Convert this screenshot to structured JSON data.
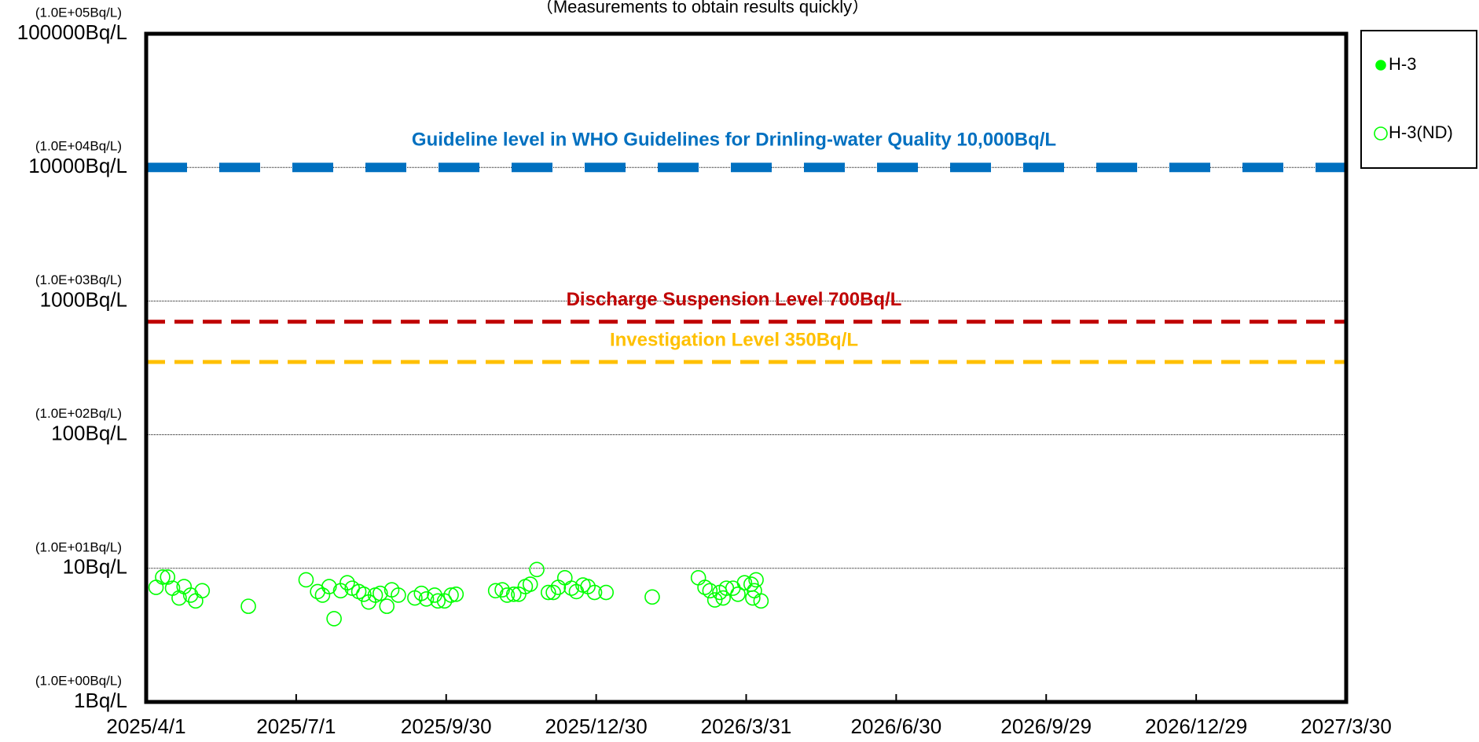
{
  "chart_data": {
    "type": "scatter",
    "subtitle": "（Measurements to obtain results quickly）",
    "log_y": true,
    "grid": true,
    "legend": "right",
    "ylim": [
      1,
      100000
    ],
    "yticks": [
      {
        "value": 1,
        "label": "1Bq/L",
        "sci_label": "(1.0E+00Bq/L)"
      },
      {
        "value": 10,
        "label": "10Bq/L",
        "sci_label": "(1.0E+01Bq/L)"
      },
      {
        "value": 100,
        "label": "100Bq/L",
        "sci_label": "(1.0E+02Bq/L)"
      },
      {
        "value": 1000,
        "label": "1000Bq/L",
        "sci_label": "(1.0E+03Bq/L)"
      },
      {
        "value": 10000,
        "label": "10000Bq/L",
        "sci_label": "(1.0E+04Bq/L)"
      },
      {
        "value": 100000,
        "label": "100000Bq/L",
        "sci_label": "(1.0E+05Bq/L)"
      }
    ],
    "xlim": [
      "2025/4/1",
      "2027/3/30"
    ],
    "xticks": [
      "2025/4/1",
      "2025/7/1",
      "2025/9/30",
      "2025/12/30",
      "2026/3/31",
      "2026/6/30",
      "2026/9/29",
      "2026/12/29",
      "2027/3/30"
    ],
    "reference_lines": [
      {
        "value": 10000,
        "label": "Guideline level in WHO Guidelines for Drinling-water Quality 10,000Bq/L",
        "color": "#0070c0",
        "width": 12,
        "dash": "52 41"
      },
      {
        "value": 700,
        "label": "Discharge Suspension Level 700Bq/L",
        "color": "#c00000",
        "width": 5,
        "dash": "24 12"
      },
      {
        "value": 350,
        "label": "Investigation Level 350Bq/L",
        "color": "#ffc000",
        "width": 5,
        "dash": "24 12"
      }
    ],
    "series": [
      {
        "name": "H-3",
        "color": "#00ff00",
        "filled": true,
        "x": [],
        "values": []
      },
      {
        "name": "H-3(ND)",
        "color": "#00ff00",
        "filled": false,
        "x": [
          "2025/4/7",
          "2025/4/11",
          "2025/4/14",
          "2025/4/17",
          "2025/4/21",
          "2025/4/24",
          "2025/4/28",
          "2025/5/1",
          "2025/5/5",
          "2025/6/2",
          "2025/7/7",
          "2025/7/14",
          "2025/7/17",
          "2025/7/21",
          "2025/7/24",
          "2025/7/28",
          "2025/8/1",
          "2025/8/4",
          "2025/8/8",
          "2025/8/11",
          "2025/8/14",
          "2025/8/18",
          "2025/8/21",
          "2025/8/25",
          "2025/8/28",
          "2025/9/1",
          "2025/9/11",
          "2025/9/15",
          "2025/9/18",
          "2025/9/23",
          "2025/9/25",
          "2025/9/29",
          "2025/10/3",
          "2025/10/6",
          "2025/10/30",
          "2025/11/3",
          "2025/11/6",
          "2025/11/10",
          "2025/11/13",
          "2025/11/17",
          "2025/11/20",
          "2025/11/24",
          "2025/12/1",
          "2025/12/4",
          "2025/12/7",
          "2025/12/11",
          "2025/12/15",
          "2025/12/18",
          "2025/12/22",
          "2025/12/25",
          "2025/12/29",
          "2026/1/5",
          "2026/2/2",
          "2026/3/2",
          "2026/3/6",
          "2026/3/9",
          "2026/3/12",
          "2026/3/15",
          "2026/3/17",
          "2026/3/19",
          "2026/3/23",
          "2026/3/26",
          "2026/3/30",
          "2026/4/3",
          "2026/4/6",
          "2026/4/5",
          "2026/4/4",
          "2026/4/9"
        ],
        "values": [
          7.2,
          8.6,
          8.6,
          7.1,
          6.0,
          7.3,
          6.3,
          5.7,
          6.8,
          5.2,
          8.2,
          6.7,
          6.3,
          7.3,
          4.2,
          6.8,
          7.8,
          7.1,
          6.7,
          6.4,
          5.6,
          6.3,
          6.5,
          5.2,
          6.9,
          6.3,
          6.0,
          6.5,
          5.9,
          6.3,
          5.7,
          5.7,
          6.3,
          6.4,
          6.8,
          6.9,
          6.3,
          6.4,
          6.4,
          7.3,
          7.6,
          9.8,
          6.6,
          6.6,
          7.2,
          8.5,
          7.1,
          6.7,
          7.5,
          7.3,
          6.6,
          6.6,
          6.1,
          8.5,
          7.2,
          6.8,
          5.8,
          6.6,
          6.0,
          7.1,
          7.1,
          6.4,
          7.8,
          7.6,
          8.2,
          6.8,
          6.0,
          5.7
        ]
      }
    ]
  }
}
